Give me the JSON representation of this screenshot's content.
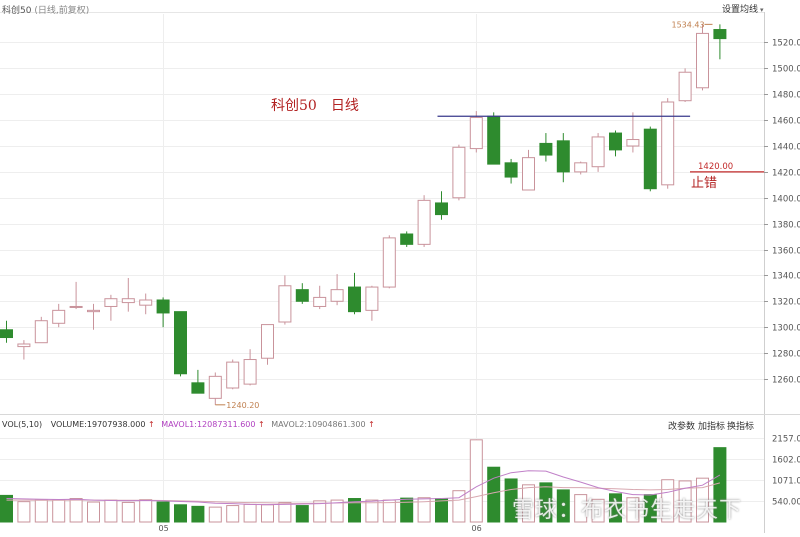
{
  "header": {
    "symbol": "科创50",
    "period": "(日线,前复权)",
    "settings_label": "设置均线",
    "settings_arrow": "▾"
  },
  "volume_header": {
    "vol_params": "VOL(5,10)",
    "volume_text": "VOLUME:19707938.000",
    "mavol1_text": "MAVOL1:12087311.600",
    "mavol2_text": "MAVOL2:10904861.300",
    "arrow": "↑",
    "btn_params": "改参数",
    "btn_add": "加指标",
    "btn_switch": "换指标"
  },
  "annotations": {
    "title": "科创50　日线",
    "stop_label": "止错",
    "stop_value": "1420.00",
    "resistance_level": 1463,
    "max_label": "1534.43",
    "min_label": "1240.20"
  },
  "watermark": "雪球：布衣书生走天下",
  "colors": {
    "up": "#c9939b",
    "down": "#2e8b2e",
    "resistance_line": "#3a3a8c",
    "stop_line": "#c22a2a",
    "mavol1": "#c080c8",
    "mavol2": "#d8a8b0",
    "grid": "#eeeeee"
  },
  "chart_data": {
    "type": "candlestick",
    "x_labels": [
      {
        "index": 9,
        "label": "05"
      },
      {
        "index": 27,
        "label": "06"
      }
    ],
    "y_ticks": [
      1260,
      1280,
      1300,
      1320,
      1340,
      1360,
      1380,
      1400,
      1420,
      1440,
      1460,
      1480,
      1500,
      1520
    ],
    "ylim": [
      1236,
      1542
    ],
    "vol_ticks": [
      "2157.00",
      "1602.00",
      "1071.00",
      "540.00"
    ],
    "vol_tick_values": [
      2157,
      1602,
      1071,
      540
    ],
    "vol_ylim": [
      0,
      2300
    ],
    "candles": [
      {
        "o": 1298,
        "h": 1305,
        "l": 1288,
        "c": 1292
      },
      {
        "o": 1285,
        "h": 1290,
        "l": 1275,
        "c": 1287
      },
      {
        "o": 1288,
        "h": 1308,
        "l": 1288,
        "c": 1305
      },
      {
        "o": 1303,
        "h": 1318,
        "l": 1300,
        "c": 1313
      },
      {
        "o": 1316,
        "h": 1335,
        "l": 1314,
        "c": 1316
      },
      {
        "o": 1312,
        "h": 1318,
        "l": 1298,
        "c": 1313
      },
      {
        "o": 1316,
        "h": 1325,
        "l": 1305,
        "c": 1322
      },
      {
        "o": 1319,
        "h": 1338,
        "l": 1312,
        "c": 1322
      },
      {
        "o": 1317,
        "h": 1326,
        "l": 1310,
        "c": 1321
      },
      {
        "o": 1321,
        "h": 1323,
        "l": 1300,
        "c": 1311
      },
      {
        "o": 1312,
        "h": 1312,
        "l": 1262,
        "c": 1264
      },
      {
        "o": 1257,
        "h": 1267,
        "l": 1252,
        "c": 1249
      },
      {
        "o": 1245,
        "h": 1265,
        "l": 1240,
        "c": 1262
      },
      {
        "o": 1253,
        "h": 1275,
        "l": 1252,
        "c": 1273
      },
      {
        "o": 1256,
        "h": 1283,
        "l": 1255,
        "c": 1275
      },
      {
        "o": 1276,
        "h": 1302,
        "l": 1271,
        "c": 1302
      },
      {
        "o": 1304,
        "h": 1340,
        "l": 1302,
        "c": 1332
      },
      {
        "o": 1329,
        "h": 1334,
        "l": 1318,
        "c": 1320
      },
      {
        "o": 1316,
        "h": 1332,
        "l": 1314,
        "c": 1323
      },
      {
        "o": 1320,
        "h": 1341,
        "l": 1317,
        "c": 1329
      },
      {
        "o": 1331,
        "h": 1342,
        "l": 1310,
        "c": 1312
      },
      {
        "o": 1313,
        "h": 1332,
        "l": 1305,
        "c": 1331
      },
      {
        "o": 1331,
        "h": 1371,
        "l": 1330,
        "c": 1369
      },
      {
        "o": 1372,
        "h": 1374,
        "l": 1362,
        "c": 1364
      },
      {
        "o": 1364,
        "h": 1402,
        "l": 1362,
        "c": 1398
      },
      {
        "o": 1396,
        "h": 1405,
        "l": 1383,
        "c": 1387
      },
      {
        "o": 1400,
        "h": 1441,
        "l": 1398,
        "c": 1439
      },
      {
        "o": 1438,
        "h": 1467,
        "l": 1435,
        "c": 1462
      },
      {
        "o": 1463,
        "h": 1466,
        "l": 1426,
        "c": 1426
      },
      {
        "o": 1427,
        "h": 1430,
        "l": 1411,
        "c": 1416
      },
      {
        "o": 1406,
        "h": 1437,
        "l": 1406,
        "c": 1431
      },
      {
        "o": 1442,
        "h": 1450,
        "l": 1428,
        "c": 1433
      },
      {
        "o": 1444,
        "h": 1450,
        "l": 1412,
        "c": 1420
      },
      {
        "o": 1420,
        "h": 1428,
        "l": 1418,
        "c": 1427
      },
      {
        "o": 1424,
        "h": 1450,
        "l": 1420,
        "c": 1447
      },
      {
        "o": 1450,
        "h": 1452,
        "l": 1432,
        "c": 1437
      },
      {
        "o": 1440,
        "h": 1466,
        "l": 1435,
        "c": 1445
      },
      {
        "o": 1453,
        "h": 1455,
        "l": 1405,
        "c": 1407
      },
      {
        "o": 1410,
        "h": 1477,
        "l": 1407,
        "c": 1474
      },
      {
        "o": 1475,
        "h": 1500,
        "l": 1474,
        "c": 1497
      },
      {
        "o": 1485,
        "h": 1534,
        "l": 1483,
        "c": 1527
      },
      {
        "o": 1530,
        "h": 1534,
        "l": 1507,
        "c": 1523
      }
    ],
    "volumes": [
      680,
      520,
      560,
      560,
      600,
      510,
      560,
      500,
      570,
      510,
      440,
      400,
      380,
      420,
      450,
      440,
      500,
      420,
      540,
      560,
      600,
      560,
      560,
      610,
      620,
      600,
      800,
      2100,
      1400,
      1100,
      950,
      1000,
      820,
      700,
      580,
      720,
      620,
      700,
      1080,
      1050,
      1120,
      1900
    ],
    "mavol1": [
      600,
      590,
      580,
      575,
      580,
      560,
      550,
      545,
      550,
      540,
      525,
      510,
      480,
      470,
      450,
      445,
      450,
      460,
      470,
      490,
      520,
      530,
      560,
      580,
      590,
      600,
      620,
      900,
      1120,
      1260,
      1310,
      1300,
      1150,
      1020,
      880,
      780,
      700,
      690,
      760,
      860,
      940,
      1200
    ],
    "mavol2": [
      560,
      560,
      555,
      555,
      560,
      560,
      555,
      555,
      555,
      550,
      540,
      530,
      515,
      505,
      495,
      490,
      480,
      480,
      480,
      485,
      490,
      490,
      495,
      505,
      520,
      540,
      560,
      650,
      750,
      830,
      880,
      900,
      880,
      880,
      860,
      850,
      830,
      820,
      830,
      860,
      880,
      1000
    ]
  }
}
